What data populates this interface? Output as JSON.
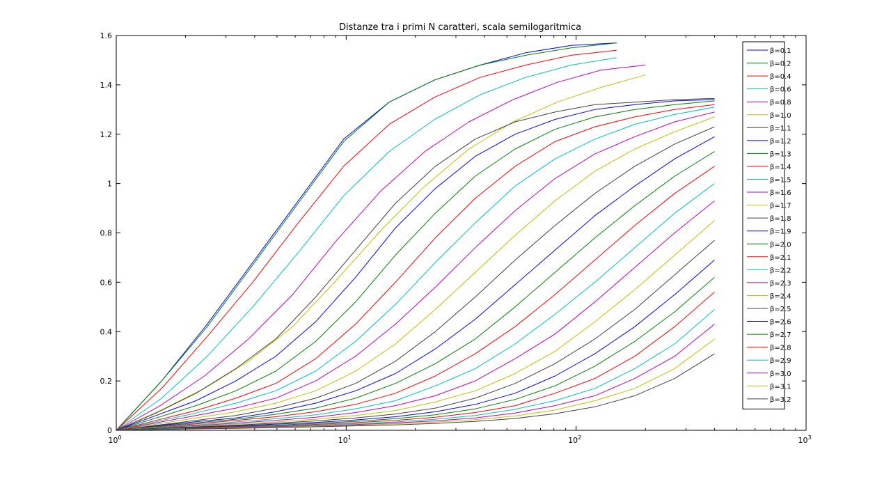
{
  "chart_data": {
    "type": "line",
    "title": "Distanze tra i primi N caratteri, scala semilogaritmica",
    "xlabel": "",
    "ylabel": "",
    "x_scale": "log",
    "xlim": [
      1,
      1000
    ],
    "ylim": [
      0,
      1.6
    ],
    "x_ticks": [
      {
        "value": 1,
        "base": "10",
        "exp": "0"
      },
      {
        "value": 10,
        "base": "10",
        "exp": "1"
      },
      {
        "value": 100,
        "base": "10",
        "exp": "2"
      },
      {
        "value": 1000,
        "base": "10",
        "exp": "3"
      }
    ],
    "y_ticks": [
      {
        "value": 0,
        "label": "0"
      },
      {
        "value": 0.2,
        "label": "0.2"
      },
      {
        "value": 0.4,
        "label": "0.4"
      },
      {
        "value": 0.6,
        "label": "0.6"
      },
      {
        "value": 0.8,
        "label": "0.8"
      },
      {
        "value": 1.0,
        "label": "1"
      },
      {
        "value": 1.2,
        "label": "1.2"
      },
      {
        "value": 1.4,
        "label": "1.4"
      },
      {
        "value": 1.6,
        "label": "1.6"
      }
    ],
    "grid": false,
    "legend_position": "top-right",
    "series": [
      {
        "name": "β=0.1",
        "color": "#0000ff",
        "x_end": 150,
        "values": [
          0.0,
          0.2,
          0.43,
          0.68,
          0.93,
          1.18,
          1.33,
          1.42,
          1.48,
          1.53,
          1.56,
          1.57
        ]
      },
      {
        "name": "β=0.2",
        "color": "#008000",
        "x_end": 150,
        "values": [
          0.0,
          0.2,
          0.42,
          0.67,
          0.92,
          1.17,
          1.33,
          1.42,
          1.48,
          1.52,
          1.55,
          1.57
        ]
      },
      {
        "name": "β=0.4",
        "color": "#ff0000",
        "x_end": 150,
        "values": [
          0.0,
          0.17,
          0.38,
          0.6,
          0.84,
          1.07,
          1.24,
          1.35,
          1.43,
          1.48,
          1.52,
          1.54
        ]
      },
      {
        "name": "β=0.6",
        "color": "#00bfbf",
        "x_end": 150,
        "values": [
          0.0,
          0.13,
          0.3,
          0.5,
          0.72,
          0.95,
          1.13,
          1.26,
          1.36,
          1.43,
          1.48,
          1.51
        ]
      },
      {
        "name": "β=0.8",
        "color": "#bf00bf",
        "x_end": 200,
        "values": [
          0.0,
          0.1,
          0.22,
          0.37,
          0.55,
          0.77,
          0.97,
          1.13,
          1.25,
          1.34,
          1.41,
          1.46,
          1.48
        ]
      },
      {
        "name": "β=1.0",
        "color": "#bfbf00",
        "x_end": 200,
        "values": [
          0.0,
          0.08,
          0.17,
          0.28,
          0.42,
          0.61,
          0.81,
          0.99,
          1.14,
          1.25,
          1.33,
          1.39,
          1.44
        ]
      },
      {
        "name": "β=1.1",
        "color": "#404040",
        "x_end": 400,
        "values": [
          0.0,
          0.07,
          0.15,
          0.25,
          0.37,
          0.54,
          0.73,
          0.92,
          1.07,
          1.18,
          1.25,
          1.29,
          1.32,
          1.33,
          1.34,
          1.345
        ]
      },
      {
        "name": "β=1.2",
        "color": "#0000ff",
        "x_end": 400,
        "values": [
          0.0,
          0.06,
          0.12,
          0.2,
          0.3,
          0.44,
          0.62,
          0.82,
          0.98,
          1.11,
          1.2,
          1.26,
          1.3,
          1.32,
          1.335,
          1.34
        ]
      },
      {
        "name": "β=1.3",
        "color": "#008000",
        "x_end": 400,
        "values": [
          0.0,
          0.05,
          0.1,
          0.16,
          0.24,
          0.36,
          0.52,
          0.71,
          0.88,
          1.03,
          1.14,
          1.22,
          1.27,
          1.3,
          1.32,
          1.335
        ]
      },
      {
        "name": "β=1.4",
        "color": "#ff0000",
        "x_end": 400,
        "values": [
          0.0,
          0.04,
          0.08,
          0.13,
          0.19,
          0.29,
          0.43,
          0.6,
          0.78,
          0.94,
          1.07,
          1.17,
          1.23,
          1.27,
          1.3,
          1.32
        ]
      },
      {
        "name": "β=1.5",
        "color": "#00bfbf",
        "x_end": 400,
        "values": [
          0.0,
          0.035,
          0.07,
          0.11,
          0.16,
          0.24,
          0.36,
          0.51,
          0.68,
          0.84,
          0.99,
          1.1,
          1.18,
          1.24,
          1.28,
          1.31
        ]
      },
      {
        "name": "β=1.6",
        "color": "#bf00bf",
        "x_end": 400,
        "values": [
          0.0,
          0.03,
          0.06,
          0.09,
          0.13,
          0.2,
          0.3,
          0.43,
          0.58,
          0.74,
          0.89,
          1.02,
          1.12,
          1.19,
          1.25,
          1.29
        ]
      },
      {
        "name": "β=1.7",
        "color": "#bfbf00",
        "x_end": 400,
        "values": [
          0.0,
          0.025,
          0.05,
          0.075,
          0.11,
          0.16,
          0.24,
          0.35,
          0.49,
          0.64,
          0.79,
          0.93,
          1.05,
          1.14,
          1.21,
          1.27
        ]
      },
      {
        "name": "β=1.8",
        "color": "#404040",
        "x_end": 400,
        "values": [
          0.0,
          0.02,
          0.04,
          0.06,
          0.09,
          0.13,
          0.19,
          0.28,
          0.4,
          0.54,
          0.69,
          0.83,
          0.96,
          1.07,
          1.16,
          1.23
        ]
      },
      {
        "name": "β=1.9",
        "color": "#0000ff",
        "x_end": 400,
        "values": [
          0.0,
          0.018,
          0.035,
          0.05,
          0.075,
          0.11,
          0.16,
          0.23,
          0.33,
          0.45,
          0.59,
          0.73,
          0.87,
          0.99,
          1.1,
          1.19
        ]
      },
      {
        "name": "β=2.0",
        "color": "#008000",
        "x_end": 400,
        "values": [
          0.0,
          0.016,
          0.03,
          0.045,
          0.065,
          0.09,
          0.13,
          0.19,
          0.27,
          0.37,
          0.5,
          0.64,
          0.78,
          0.91,
          1.03,
          1.13
        ]
      },
      {
        "name": "β=2.1",
        "color": "#ff0000",
        "x_end": 400,
        "values": [
          0.0,
          0.014,
          0.026,
          0.04,
          0.055,
          0.075,
          0.105,
          0.15,
          0.22,
          0.31,
          0.42,
          0.55,
          0.69,
          0.83,
          0.96,
          1.07
        ]
      },
      {
        "name": "β=2.2",
        "color": "#00bfbf",
        "x_end": 400,
        "values": [
          0.0,
          0.012,
          0.022,
          0.034,
          0.047,
          0.063,
          0.087,
          0.12,
          0.18,
          0.25,
          0.35,
          0.47,
          0.6,
          0.74,
          0.88,
          1.0
        ]
      },
      {
        "name": "β=2.3",
        "color": "#bf00bf",
        "x_end": 400,
        "values": [
          0.0,
          0.01,
          0.019,
          0.029,
          0.04,
          0.053,
          0.072,
          0.1,
          0.14,
          0.2,
          0.29,
          0.39,
          0.52,
          0.66,
          0.8,
          0.93
        ]
      },
      {
        "name": "β=2.4",
        "color": "#bfbf00",
        "x_end": 400,
        "values": [
          0.0,
          0.009,
          0.016,
          0.025,
          0.034,
          0.045,
          0.06,
          0.08,
          0.115,
          0.16,
          0.23,
          0.32,
          0.44,
          0.57,
          0.71,
          0.85
        ]
      },
      {
        "name": "β=2.5",
        "color": "#404040",
        "x_end": 400,
        "values": [
          0.0,
          0.008,
          0.014,
          0.021,
          0.029,
          0.038,
          0.05,
          0.066,
          0.09,
          0.13,
          0.19,
          0.27,
          0.37,
          0.49,
          0.63,
          0.77
        ]
      },
      {
        "name": "β=2.6",
        "color": "#0000ff",
        "x_end": 400,
        "values": [
          0.0,
          0.007,
          0.012,
          0.018,
          0.025,
          0.032,
          0.042,
          0.055,
          0.075,
          0.105,
          0.15,
          0.22,
          0.31,
          0.42,
          0.55,
          0.69
        ]
      },
      {
        "name": "β=2.7",
        "color": "#008000",
        "x_end": 400,
        "values": [
          0.0,
          0.006,
          0.011,
          0.016,
          0.021,
          0.028,
          0.036,
          0.047,
          0.063,
          0.087,
          0.125,
          0.18,
          0.26,
          0.36,
          0.48,
          0.62
        ]
      },
      {
        "name": "β=2.8",
        "color": "#ff0000",
        "x_end": 400,
        "values": [
          0.0,
          0.005,
          0.009,
          0.014,
          0.018,
          0.024,
          0.031,
          0.04,
          0.053,
          0.072,
          0.1,
          0.15,
          0.21,
          0.3,
          0.42,
          0.56
        ]
      },
      {
        "name": "β=2.9",
        "color": "#00bfbf",
        "x_end": 400,
        "values": [
          0.0,
          0.005,
          0.008,
          0.012,
          0.016,
          0.021,
          0.027,
          0.034,
          0.045,
          0.06,
          0.085,
          0.12,
          0.17,
          0.25,
          0.35,
          0.49
        ]
      },
      {
        "name": "β=3.0",
        "color": "#bf00bf",
        "x_end": 400,
        "values": [
          0.0,
          0.004,
          0.007,
          0.011,
          0.014,
          0.018,
          0.023,
          0.03,
          0.038,
          0.05,
          0.07,
          0.1,
          0.14,
          0.21,
          0.3,
          0.43
        ]
      },
      {
        "name": "β=3.1",
        "color": "#bfbf00",
        "x_end": 400,
        "values": [
          0.0,
          0.004,
          0.006,
          0.009,
          0.012,
          0.016,
          0.02,
          0.026,
          0.033,
          0.043,
          0.058,
          0.082,
          0.12,
          0.17,
          0.25,
          0.37
        ]
      },
      {
        "name": "β=3.2",
        "color": "#404040",
        "x_end": 400,
        "values": [
          0.0,
          0.003,
          0.006,
          0.008,
          0.011,
          0.014,
          0.018,
          0.022,
          0.028,
          0.036,
          0.048,
          0.067,
          0.095,
          0.14,
          0.21,
          0.31
        ]
      }
    ]
  }
}
